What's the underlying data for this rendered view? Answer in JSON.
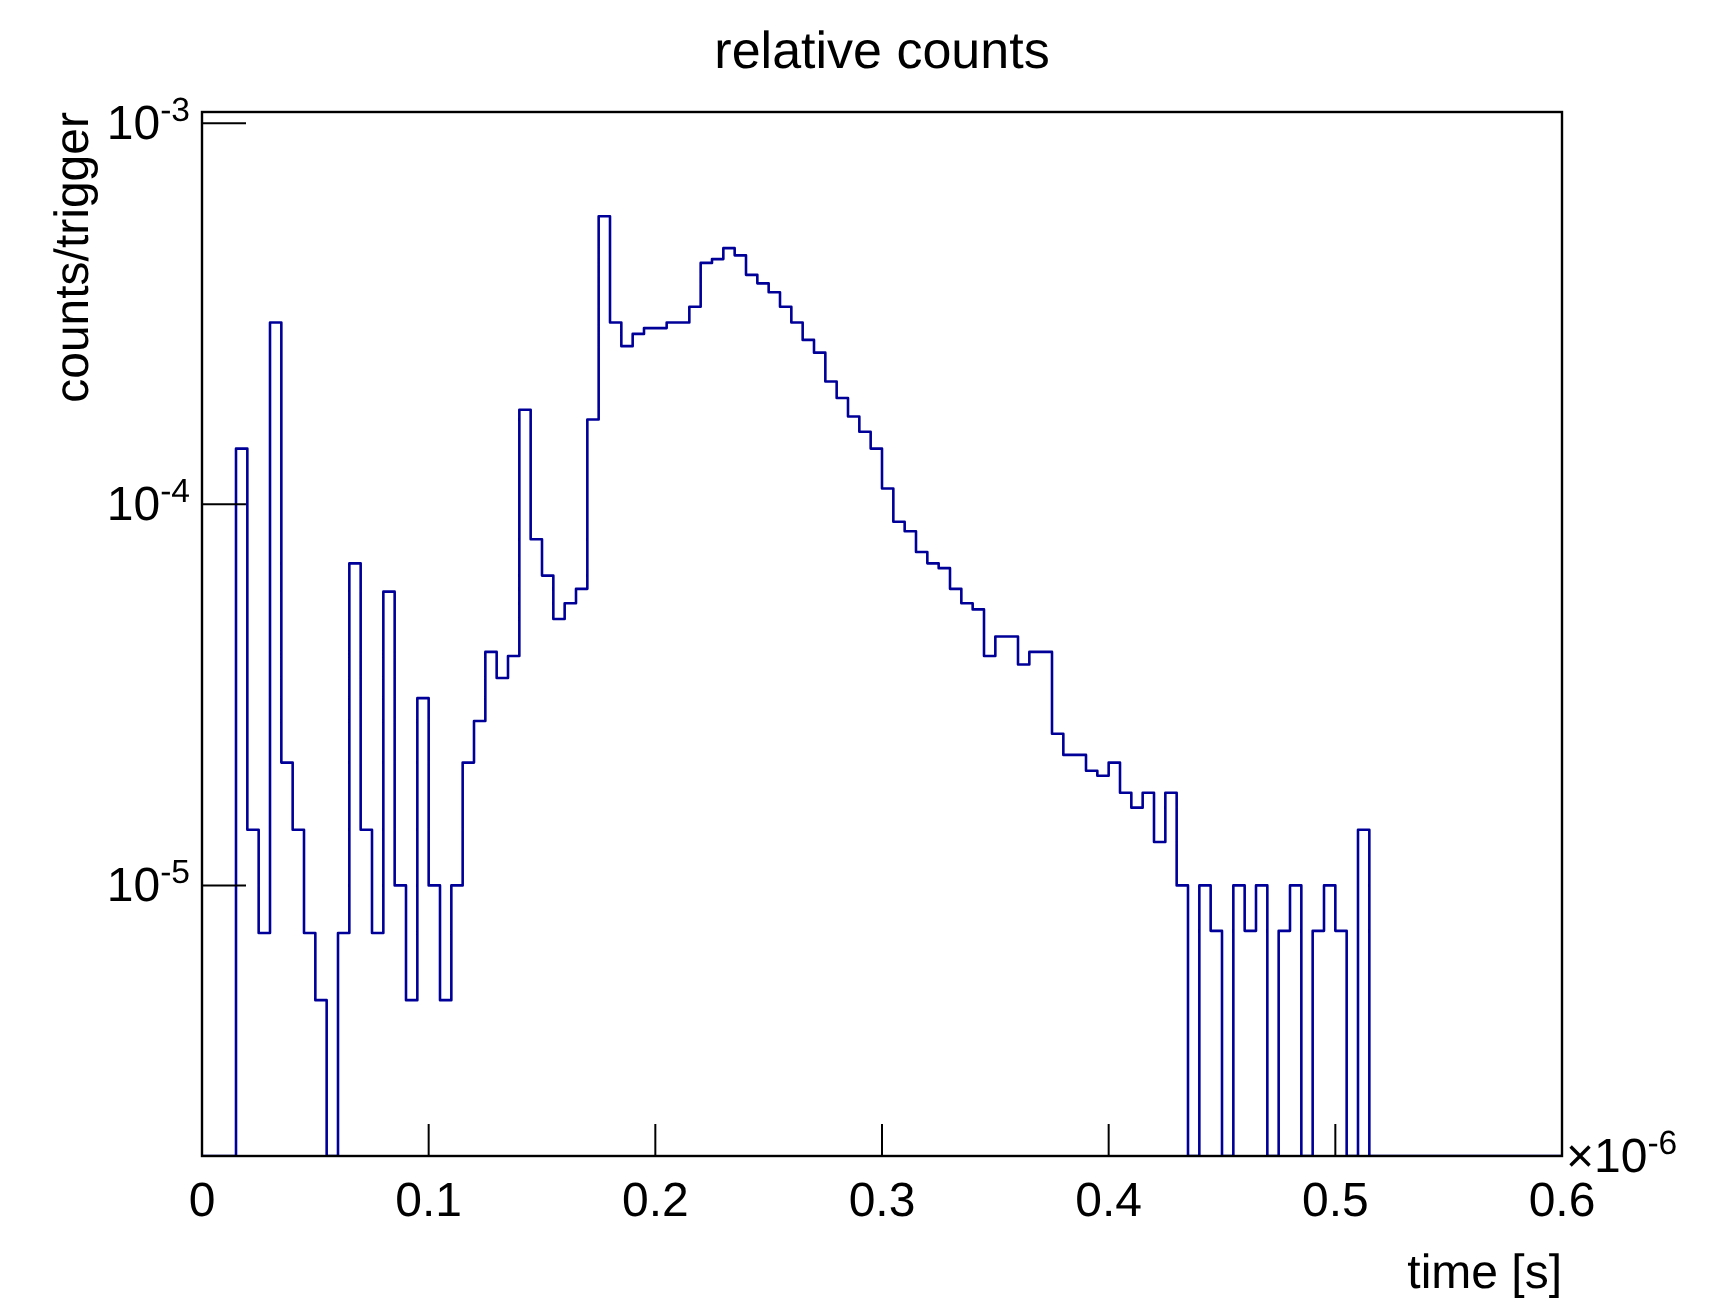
{
  "chart_data": {
    "type": "histogram",
    "title": "relative counts",
    "xlabel": "time [s]",
    "ylabel": "counts/trigger",
    "annotations": [
      "×10$^{-6}$"
    ],
    "color": "#000099",
    "log": "y",
    "grid": false,
    "xlim": [
      0,
      0.6
    ],
    "ylim": [
      1.95e-06,
      0.00107
    ],
    "xticks": [
      0,
      0.1,
      0.2,
      0.3,
      0.4,
      0.5,
      0.6
    ],
    "yticks": [
      {
        "value": 1e-05,
        "label": "10$^{-5}$"
      },
      {
        "value": 0.0001,
        "label": "10$^{-4}$"
      },
      {
        "value": 0.001,
        "label": "10$^{-3}$"
      }
    ],
    "bins": [
      0,
      0.005,
      0.01,
      0.015,
      0.02,
      0.025,
      0.03,
      0.035,
      0.04,
      0.045,
      0.05,
      0.055,
      0.06,
      0.065,
      0.07,
      0.075,
      0.08,
      0.085,
      0.09,
      0.095,
      0.1,
      0.105,
      0.11,
      0.115,
      0.12,
      0.125,
      0.13,
      0.135,
      0.14,
      0.145,
      0.15,
      0.155,
      0.16,
      0.165,
      0.17,
      0.175,
      0.18,
      0.185,
      0.19,
      0.195,
      0.2,
      0.205,
      0.21,
      0.215,
      0.22,
      0.225,
      0.23,
      0.235,
      0.24,
      0.245,
      0.25,
      0.255,
      0.26,
      0.265,
      0.27,
      0.275,
      0.28,
      0.285,
      0.29,
      0.295,
      0.3,
      0.305,
      0.31,
      0.315,
      0.32,
      0.325,
      0.33,
      0.335,
      0.34,
      0.345,
      0.35,
      0.355,
      0.36,
      0.365,
      0.37,
      0.375,
      0.38,
      0.385,
      0.39,
      0.395,
      0.4,
      0.405,
      0.41,
      0.415,
      0.42,
      0.425,
      0.43,
      0.435,
      0.44,
      0.445,
      0.45,
      0.455,
      0.46,
      0.465,
      0.47,
      0.475,
      0.48,
      0.485,
      0.49,
      0.495,
      0.5,
      0.505,
      0.51,
      0.515,
      0.52,
      0.525,
      0.53,
      0.535,
      0.54,
      0.545,
      0.55,
      0.555,
      0.56,
      0.565,
      0.57,
      0.575,
      0.58,
      0.585,
      0.59,
      0.595,
      0.6
    ],
    "values": [
      null,
      null,
      null,
      0.00014,
      1.4e-05,
      7.5e-06,
      0.0003,
      2.1e-05,
      1.4e-05,
      7.5e-06,
      5e-06,
      null,
      7.5e-06,
      7e-05,
      1.4e-05,
      7.5e-06,
      5.9e-05,
      1e-05,
      5e-06,
      3.1e-05,
      1e-05,
      5e-06,
      1e-05,
      2.1e-05,
      2.7e-05,
      4.1e-05,
      3.5e-05,
      4e-05,
      0.000177,
      8.1e-05,
      6.5e-05,
      5e-05,
      5.5e-05,
      6e-05,
      0.000167,
      0.00057,
      0.0003,
      0.00026,
      0.00028,
      0.00029,
      0.00029,
      0.0003,
      0.0003,
      0.00033,
      0.00043,
      0.00044,
      0.00047,
      0.00045,
      0.0004,
      0.00038,
      0.00036,
      0.00033,
      0.0003,
      0.00027,
      0.00025,
      0.00021,
      0.00019,
      0.00017,
      0.000155,
      0.00014,
      0.00011,
      9e-05,
      8.5e-05,
      7.5e-05,
      7e-05,
      6.8e-05,
      6e-05,
      5.5e-05,
      5.3e-05,
      4e-05,
      4.5e-05,
      4.5e-05,
      3.8e-05,
      4.1e-05,
      4.1e-05,
      2.5e-05,
      2.2e-05,
      2.2e-05,
      2e-05,
      1.94e-05,
      2.1e-05,
      1.75e-05,
      1.6e-05,
      1.75e-05,
      1.3e-05,
      1.75e-05,
      1e-05,
      null,
      1e-05,
      7.6e-06,
      null,
      1e-05,
      7.6e-06,
      1e-05,
      null,
      7.6e-06,
      1e-05,
      null,
      7.6e-06,
      1e-05,
      7.6e-06,
      null,
      1.4e-05,
      null,
      null,
      null,
      null,
      null,
      null,
      null,
      null,
      null,
      null,
      null,
      null,
      null,
      null,
      null,
      null,
      null
    ]
  }
}
